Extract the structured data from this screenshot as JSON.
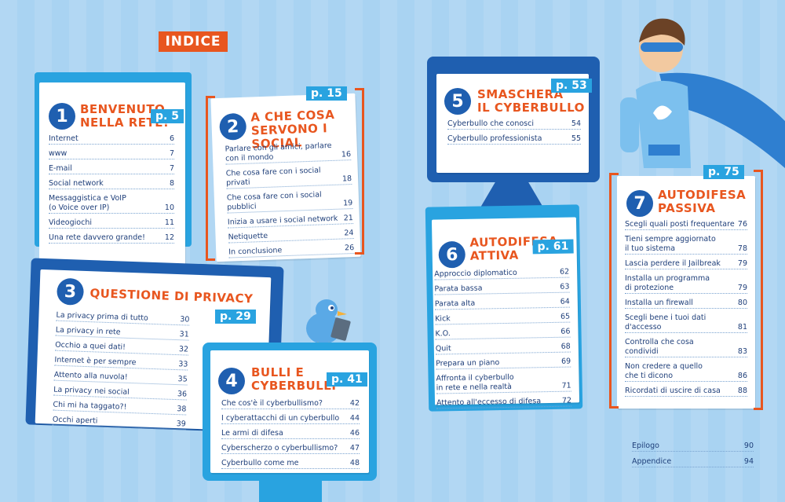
{
  "indice": "INDICE",
  "sections": {
    "s1": {
      "num": "1",
      "title": "BENVENUTO\nNELLA RETE!",
      "page": "p. 5",
      "items": [
        {
          "t": "Internet",
          "p": "6"
        },
        {
          "t": "www",
          "p": "7"
        },
        {
          "t": "E-mail",
          "p": "7"
        },
        {
          "t": "Social network",
          "p": "8"
        },
        {
          "t": "Messaggistica e VoIP\n(o Voice over IP)",
          "p": "10"
        },
        {
          "t": "Videogiochi",
          "p": "11"
        },
        {
          "t": "Una rete davvero grande!",
          "p": "12"
        }
      ]
    },
    "s2": {
      "num": "2",
      "title": "A CHE COSA\nSERVONO I SOCIAL",
      "page": "p. 15",
      "items": [
        {
          "t": "Parlare con gli amici, parlare\ncon il mondo",
          "p": "16"
        },
        {
          "t": "Che cosa fare con i social\nprivati",
          "p": "18"
        },
        {
          "t": "Che cosa fare con i social\npubblici",
          "p": "19"
        },
        {
          "t": "Inizia a usare i social network",
          "p": "21"
        },
        {
          "t": "Netiquette",
          "p": "24"
        },
        {
          "t": "In conclusione",
          "p": "26"
        }
      ]
    },
    "s3": {
      "num": "3",
      "title": "QUESTIONE DI PRIVACY",
      "page": "p. 29",
      "items": [
        {
          "t": "La privacy prima di tutto",
          "p": "30"
        },
        {
          "t": "La privacy in rete",
          "p": "31"
        },
        {
          "t": "Occhio a quei dati!",
          "p": "32"
        },
        {
          "t": "Internet è per sempre",
          "p": "33"
        },
        {
          "t": "Attento alla nuvola!",
          "p": "35"
        },
        {
          "t": "La privacy nei social",
          "p": "36"
        },
        {
          "t": "Chi mi ha taggato?!",
          "p": "38"
        },
        {
          "t": "Occhi aperti",
          "p": "39"
        }
      ]
    },
    "s4": {
      "num": "4",
      "title": "BULLI E\nCYBERBULLI",
      "page": "p. 41",
      "items": [
        {
          "t": "Che cos'è il cyberbullismo?",
          "p": "42"
        },
        {
          "t": "I cyberattacchi di un cyberbullo",
          "p": "44"
        },
        {
          "t": "Le armi di difesa",
          "p": "46"
        },
        {
          "t": "Cyberscherzo o cyberbullismo?",
          "p": "47"
        },
        {
          "t": "Cyberbullo come me",
          "p": "48"
        }
      ]
    },
    "s5": {
      "num": "5",
      "title": "SMASCHERA\nIL CYBERBULLO",
      "page": "p. 53",
      "items": [
        {
          "t": "Cyberbullo che conosci",
          "p": "54"
        },
        {
          "t": "Cyberbullo professionista",
          "p": "55"
        }
      ]
    },
    "s6": {
      "num": "6",
      "title": "AUTODIFESA\nATTIVA",
      "page": "p. 61",
      "items": [
        {
          "t": "Approccio diplomatico",
          "p": "62"
        },
        {
          "t": "Parata bassa",
          "p": "63"
        },
        {
          "t": "Parata alta",
          "p": "64"
        },
        {
          "t": "Kick",
          "p": "65"
        },
        {
          "t": "K.O.",
          "p": "66"
        },
        {
          "t": "Quit",
          "p": "68"
        },
        {
          "t": "Prepara un piano",
          "p": "69"
        },
        {
          "t": "Affronta il cyberbullo\nin rete e nella realtà",
          "p": "71"
        },
        {
          "t": "Attento all'eccesso di difesa",
          "p": "72"
        }
      ]
    },
    "s7": {
      "num": "7",
      "title": "AUTODIFESA\nPASSIVA",
      "page": "p. 75",
      "items": [
        {
          "t": "Scegli quali posti frequentare",
          "p": "76"
        },
        {
          "t": "Tieni sempre aggiornato\nil tuo sistema",
          "p": "78"
        },
        {
          "t": "Lascia perdere il Jailbreak",
          "p": "79"
        },
        {
          "t": "Installa un programma\ndi protezione",
          "p": "79"
        },
        {
          "t": "Installa un firewall",
          "p": "80"
        },
        {
          "t": "Scegli bene i tuoi dati\nd'accesso",
          "p": "81"
        },
        {
          "t": "Controlla che cosa\ncondividi",
          "p": "83"
        },
        {
          "t": "Non credere a quello\nche ti dicono",
          "p": "86"
        },
        {
          "t": "Ricordati di uscire di casa",
          "p": "88"
        }
      ]
    }
  },
  "end": [
    {
      "t": "Epilogo",
      "p": "90"
    },
    {
      "t": "Appendice",
      "p": "94"
    }
  ],
  "colors": {
    "accent": "#e8561f",
    "blue": "#1f5fb0",
    "light_blue": "#29a3e0",
    "background": "#a9d3f2"
  },
  "icons": [
    "bird-illustration",
    "superhero-illustration"
  ]
}
